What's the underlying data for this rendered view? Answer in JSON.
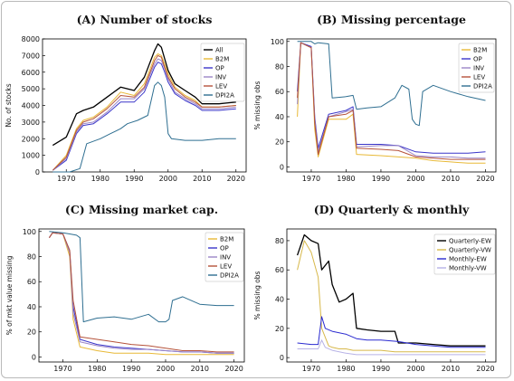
{
  "colors": {
    "All": "#000000",
    "B2M": "#e8b937",
    "OP": "#3a36c9",
    "INV": "#9b86c7",
    "LEV": "#b5523a",
    "DPI2A": "#2f6f91",
    "Quarterly-EW": "#000000",
    "Quarterly-VW": "#d7b84a",
    "Monthly-EW": "#2a2ad0",
    "Monthly-VW": "#b7b2e6"
  },
  "chart_data": [
    {
      "id": "A",
      "type": "line",
      "title": "(A) Number of stocks",
      "ylabel": "No. of stocks",
      "xlim": [
        1963,
        2023
      ],
      "ylim": [
        0,
        8000
      ],
      "xticks": [
        1970,
        1980,
        1990,
        2000,
        2010,
        2020
      ],
      "yticks": [
        0,
        1000,
        2000,
        3000,
        4000,
        5000,
        6000,
        7000,
        8000
      ],
      "legend": "top-right",
      "series": [
        {
          "name": "All",
          "x": [
            1966,
            1970,
            1973,
            1975,
            1978,
            1982,
            1986,
            1990,
            1993,
            1996,
            1997,
            1998,
            1999,
            2000,
            2002,
            2005,
            2008,
            2010,
            2015,
            2020
          ],
          "y": [
            1600,
            2100,
            3500,
            3700,
            3900,
            4500,
            5100,
            4900,
            5700,
            7300,
            7700,
            7500,
            6800,
            6100,
            5300,
            4900,
            4500,
            4100,
            4100,
            4200
          ]
        },
        {
          "name": "B2M",
          "x": [
            1966,
            1970,
            1973,
            1975,
            1978,
            1982,
            1986,
            1990,
            1993,
            1996,
            1997,
            1998,
            1999,
            2000,
            2002,
            2005,
            2008,
            2010,
            2015,
            2020
          ],
          "y": [
            100,
            1000,
            2600,
            3100,
            3300,
            3900,
            4800,
            4600,
            5300,
            6900,
            7100,
            7000,
            6500,
            5900,
            5100,
            4600,
            4300,
            3900,
            3900,
            4000
          ]
        },
        {
          "name": "OP",
          "x": [
            1966,
            1970,
            1973,
            1975,
            1978,
            1982,
            1986,
            1990,
            1993,
            1996,
            1997,
            1998,
            1999,
            2000,
            2002,
            2005,
            2008,
            2010,
            2015,
            2020
          ],
          "y": [
            100,
            700,
            2300,
            2800,
            2900,
            3500,
            4200,
            4200,
            4800,
            6300,
            6600,
            6500,
            6000,
            5400,
            4700,
            4300,
            4000,
            3700,
            3700,
            3800
          ]
        },
        {
          "name": "INV",
          "x": [
            1966,
            1970,
            1973,
            1975,
            1978,
            1982,
            1986,
            1990,
            1993,
            1996,
            1997,
            1998,
            1999,
            2000,
            2002,
            2005,
            2008,
            2010,
            2015,
            2020
          ],
          "y": [
            100,
            800,
            2400,
            2900,
            3000,
            3600,
            4400,
            4400,
            5000,
            6500,
            6800,
            6700,
            6200,
            5600,
            4800,
            4400,
            4100,
            3800,
            3800,
            3900
          ]
        },
        {
          "name": "LEV",
          "x": [
            1966,
            1970,
            1973,
            1975,
            1978,
            1982,
            1986,
            1990,
            1993,
            1996,
            1997,
            1998,
            1999,
            2000,
            2002,
            2005,
            2008,
            2010,
            2015,
            2020
          ],
          "y": [
            100,
            900,
            2500,
            3000,
            3200,
            3800,
            4600,
            4500,
            5100,
            6700,
            7000,
            6900,
            6300,
            5700,
            5000,
            4500,
            4200,
            3900,
            3900,
            4000
          ]
        },
        {
          "name": "DPI2A",
          "x": [
            1966,
            1971,
            1974,
            1976,
            1980,
            1983,
            1986,
            1988,
            1991,
            1994,
            1996,
            1997,
            1998,
            1999,
            2000,
            2001,
            2005,
            2010,
            2015,
            2020
          ],
          "y": [
            0,
            0,
            200,
            1700,
            2000,
            2300,
            2600,
            2900,
            3100,
            3400,
            5200,
            5400,
            5200,
            4500,
            2300,
            2000,
            1900,
            1900,
            2000,
            2000
          ]
        }
      ]
    },
    {
      "id": "B",
      "type": "line",
      "title": "(B) Missing percentage",
      "ylabel": "% missing obs",
      "xlim": [
        1963,
        2023
      ],
      "ylim": [
        -4,
        102
      ],
      "xticks": [
        1970,
        1980,
        1990,
        2000,
        2010,
        2020
      ],
      "yticks": [
        0,
        20,
        40,
        60,
        80,
        100
      ],
      "legend": "top-right",
      "series": [
        {
          "name": "B2M",
          "x": [
            1966,
            1967,
            1970,
            1971,
            1972,
            1975,
            1980,
            1982,
            1983,
            1990,
            1995,
            2000,
            2005,
            2010,
            2015,
            2020
          ],
          "y": [
            40,
            99,
            95,
            30,
            8,
            38,
            38,
            42,
            10,
            9,
            8,
            7,
            5,
            4,
            3,
            3
          ]
        },
        {
          "name": "OP",
          "x": [
            1966,
            1967,
            1970,
            1971,
            1972,
            1975,
            1980,
            1982,
            1983,
            1990,
            1995,
            2000,
            2005,
            2010,
            2015,
            2020
          ],
          "y": [
            60,
            99,
            96,
            40,
            15,
            42,
            45,
            48,
            18,
            18,
            17,
            12,
            11,
            11,
            11,
            12
          ]
        },
        {
          "name": "INV",
          "x": [
            1966,
            1967,
            1970,
            1971,
            1972,
            1975,
            1980,
            1982,
            1983,
            1990,
            1995,
            2000,
            2005,
            2010,
            2015,
            2020
          ],
          "y": [
            50,
            99,
            95,
            38,
            12,
            40,
            44,
            46,
            16,
            17,
            17,
            9,
            8,
            8,
            7,
            7
          ]
        },
        {
          "name": "LEV",
          "x": [
            1966,
            1967,
            1970,
            1971,
            1972,
            1975,
            1980,
            1982,
            1983,
            1990,
            1995,
            2000,
            2005,
            2010,
            2015,
            2020
          ],
          "y": [
            55,
            99,
            95,
            35,
            10,
            40,
            42,
            45,
            15,
            14,
            13,
            8,
            7,
            6,
            6,
            6
          ]
        },
        {
          "name": "DPI2A",
          "x": [
            1966,
            1970,
            1971,
            1972,
            1975,
            1976,
            1980,
            1982,
            1983,
            1986,
            1990,
            1994,
            1996,
            1998,
            1999,
            2000,
            2001,
            2002,
            2005,
            2010,
            2015,
            2020
          ],
          "y": [
            100,
            100,
            98,
            99,
            98,
            55,
            56,
            57,
            46,
            47,
            48,
            55,
            65,
            62,
            38,
            34,
            33,
            60,
            65,
            60,
            56,
            53
          ]
        }
      ]
    },
    {
      "id": "C",
      "type": "line",
      "title": "(C) Missing market cap.",
      "ylabel": "% of mkt value missing",
      "xlim": [
        1963,
        2023
      ],
      "ylim": [
        -4,
        102
      ],
      "xticks": [
        1970,
        1980,
        1990,
        2000,
        2010,
        2020
      ],
      "yticks": [
        0,
        20,
        40,
        60,
        80,
        100
      ],
      "legend": "top-right",
      "series": [
        {
          "name": "B2M",
          "x": [
            1966,
            1967,
            1970,
            1972,
            1973,
            1975,
            1980,
            1985,
            1990,
            1995,
            2000,
            2005,
            2010,
            2015,
            2020
          ],
          "y": [
            95,
            99,
            98,
            80,
            30,
            8,
            5,
            3,
            3,
            3,
            2,
            2,
            2,
            2,
            2
          ]
        },
        {
          "name": "OP",
          "x": [
            1966,
            1967,
            1970,
            1972,
            1973,
            1975,
            1980,
            1985,
            1990,
            1995,
            2000,
            2005,
            2010,
            2015,
            2020
          ],
          "y": [
            95,
            99,
            98,
            85,
            40,
            14,
            10,
            8,
            7,
            6,
            5,
            4,
            4,
            3,
            3
          ]
        },
        {
          "name": "INV",
          "x": [
            1966,
            1967,
            1970,
            1972,
            1973,
            1975,
            1980,
            1985,
            1990,
            1995,
            2000,
            2005,
            2010,
            2015,
            2020
          ],
          "y": [
            95,
            99,
            98,
            83,
            35,
            12,
            9,
            7,
            6,
            6,
            5,
            4,
            4,
            3,
            3
          ]
        },
        {
          "name": "LEV",
          "x": [
            1966,
            1967,
            1970,
            1972,
            1973,
            1975,
            1980,
            1985,
            1990,
            1995,
            2000,
            2005,
            2010,
            2015,
            2020
          ],
          "y": [
            95,
            99,
            98,
            85,
            45,
            16,
            14,
            12,
            10,
            9,
            7,
            5,
            5,
            4,
            4
          ]
        },
        {
          "name": "DPI2A",
          "x": [
            1966,
            1970,
            1972,
            1974,
            1975,
            1976,
            1980,
            1985,
            1990,
            1995,
            1998,
            2000,
            2001,
            2002,
            2005,
            2010,
            2015,
            2020
          ],
          "y": [
            100,
            99,
            98,
            97,
            95,
            28,
            31,
            32,
            30,
            34,
            28,
            28,
            30,
            45,
            48,
            42,
            41,
            41
          ]
        }
      ]
    },
    {
      "id": "D",
      "type": "line",
      "title": "(D) Quarterly & monthly",
      "ylabel": "% missing obs",
      "xlim": [
        1963,
        2023
      ],
      "ylim": [
        -3,
        88
      ],
      "xticks": [
        1970,
        1980,
        1990,
        2000,
        2010,
        2020
      ],
      "yticks": [
        0,
        20,
        40,
        60,
        80
      ],
      "legend": "top-right",
      "series": [
        {
          "name": "Quarterly-EW",
          "x": [
            1966,
            1968,
            1970,
            1972,
            1973,
            1975,
            1976,
            1978,
            1980,
            1982,
            1983,
            1986,
            1990,
            1994,
            1995,
            2000,
            2005,
            2010,
            2015,
            2020
          ],
          "y": [
            70,
            84,
            80,
            78,
            60,
            66,
            50,
            38,
            40,
            44,
            20,
            19,
            18,
            18,
            10,
            10,
            9,
            8,
            8,
            8
          ]
        },
        {
          "name": "Quarterly-VW",
          "x": [
            1966,
            1968,
            1970,
            1972,
            1973,
            1975,
            1976,
            1978,
            1980,
            1982,
            1983,
            1986,
            1990,
            1994,
            1995,
            2000,
            2005,
            2010,
            2015,
            2020
          ],
          "y": [
            60,
            80,
            72,
            55,
            20,
            8,
            7,
            6,
            6,
            5,
            5,
            5,
            5,
            4,
            4,
            4,
            4,
            4,
            4,
            4
          ]
        },
        {
          "name": "Monthly-EW",
          "x": [
            1966,
            1970,
            1972,
            1973,
            1974,
            1976,
            1980,
            1983,
            1986,
            1990,
            1995,
            2000,
            2005,
            2010,
            2015,
            2020
          ],
          "y": [
            10,
            9,
            9,
            28,
            20,
            18,
            16,
            13,
            12,
            12,
            11,
            9,
            8,
            7,
            7,
            7
          ]
        },
        {
          "name": "Monthly-VW",
          "x": [
            1966,
            1970,
            1972,
            1973,
            1974,
            1976,
            1980,
            1983,
            1986,
            1990,
            1995,
            2000,
            2005,
            2010,
            2015,
            2020
          ],
          "y": [
            6,
            6,
            6,
            12,
            7,
            5,
            3,
            2,
            2,
            2,
            2,
            2,
            2,
            2,
            2,
            2
          ]
        }
      ]
    }
  ]
}
